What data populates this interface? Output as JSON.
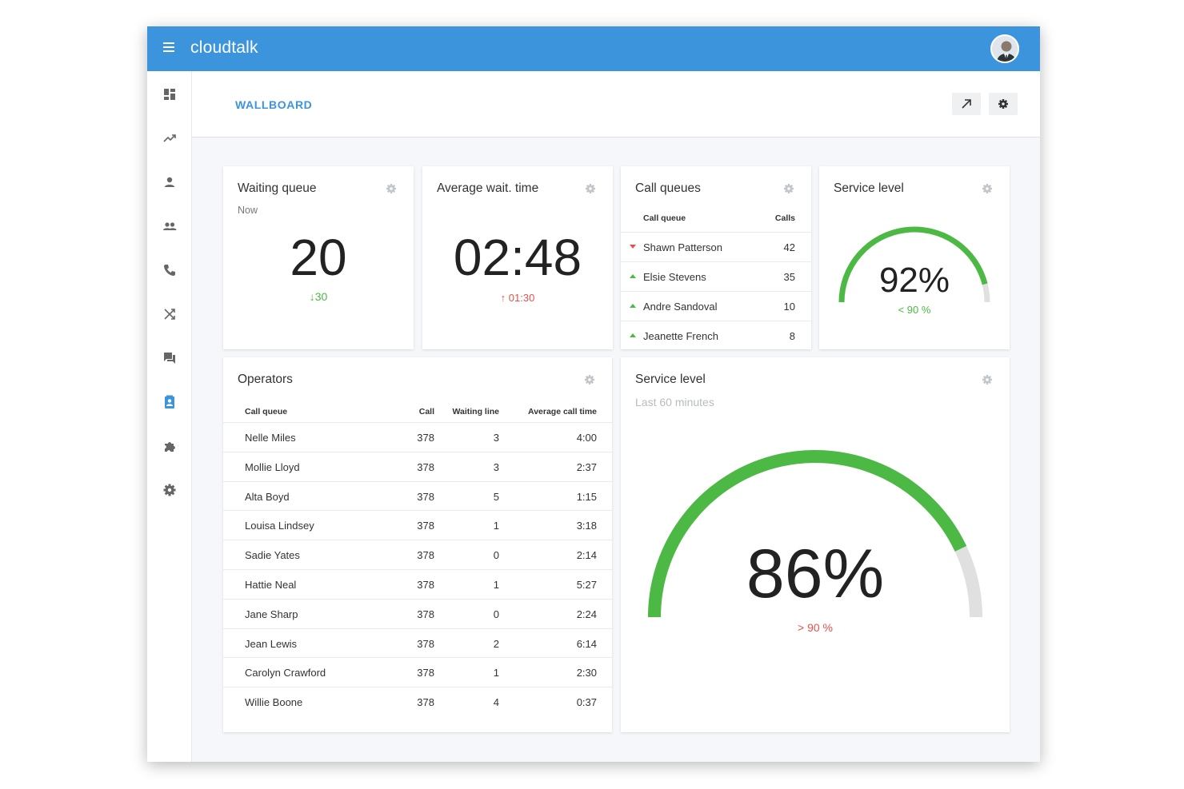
{
  "app": {
    "brand": "cloudtalk"
  },
  "sidebar": {
    "items": [
      {
        "icon": "dashboard-icon"
      },
      {
        "icon": "analytics-icon"
      },
      {
        "icon": "person-icon"
      },
      {
        "icon": "people-icon"
      },
      {
        "icon": "phone-icon"
      },
      {
        "icon": "shuffle-icon"
      },
      {
        "icon": "chat-icon"
      },
      {
        "icon": "wallboard-icon",
        "active": true
      },
      {
        "icon": "puzzle-icon"
      },
      {
        "icon": "settings-icon"
      }
    ],
    "active_color": "#3b94dc"
  },
  "header": {
    "title": "WALLBOARD"
  },
  "waiting_queue": {
    "title": "Waiting queue",
    "subtitle": "Now",
    "value": "20",
    "delta": "30",
    "delta_direction": "down"
  },
  "avg_wait": {
    "title": "Average wait. time",
    "value": "02:48",
    "delta": "01:30",
    "delta_direction": "up"
  },
  "call_queues": {
    "title": "Call queues",
    "headers": {
      "name": "Call queue",
      "calls": "Calls"
    },
    "rows": [
      {
        "name": "Shawn Patterson",
        "calls": "42",
        "trend": "down"
      },
      {
        "name": "Elsie Stevens",
        "calls": "35",
        "trend": "up"
      },
      {
        "name": "Andre Sandoval",
        "calls": "10",
        "trend": "up"
      },
      {
        "name": "Jeanette French",
        "calls": "8",
        "trend": "up"
      }
    ]
  },
  "service_level_small": {
    "title": "Service level",
    "value": "92%",
    "percent": 92,
    "target": "< 90 %"
  },
  "operators": {
    "title": "Operators",
    "headers": {
      "name": "Call queue",
      "call": "Call",
      "waiting": "Waiting line",
      "avg": "Average call time"
    },
    "rows": [
      {
        "name": "Nelle Miles",
        "call": "378",
        "waiting": "3",
        "avg": "4:00"
      },
      {
        "name": "Mollie Lloyd",
        "call": "378",
        "waiting": "3",
        "avg": "2:37"
      },
      {
        "name": "Alta Boyd",
        "call": "378",
        "waiting": "5",
        "avg": "1:15"
      },
      {
        "name": "Louisa Lindsey",
        "call": "378",
        "waiting": "1",
        "avg": "3:18"
      },
      {
        "name": "Sadie Yates",
        "call": "378",
        "waiting": "0",
        "avg": "2:14"
      },
      {
        "name": "Hattie Neal",
        "call": "378",
        "waiting": "1",
        "avg": "5:27"
      },
      {
        "name": "Jane Sharp",
        "call": "378",
        "waiting": "0",
        "avg": "2:24"
      },
      {
        "name": "Jean Lewis",
        "call": "378",
        "waiting": "2",
        "avg": "6:14"
      },
      {
        "name": "Carolyn Crawford",
        "call": "378",
        "waiting": "1",
        "avg": "2:30"
      },
      {
        "name": "Willie Boone",
        "call": "378",
        "waiting": "4",
        "avg": "0:37"
      }
    ]
  },
  "service_level_large": {
    "title": "Service level",
    "subtitle": "Last 60 minutes",
    "value": "86%",
    "percent": 86,
    "target": "> 90 %"
  },
  "colors": {
    "accent": "#3b94dc",
    "good": "#4cb944",
    "bad": "#e8514b",
    "gauge_track": "#e0e0e0"
  }
}
